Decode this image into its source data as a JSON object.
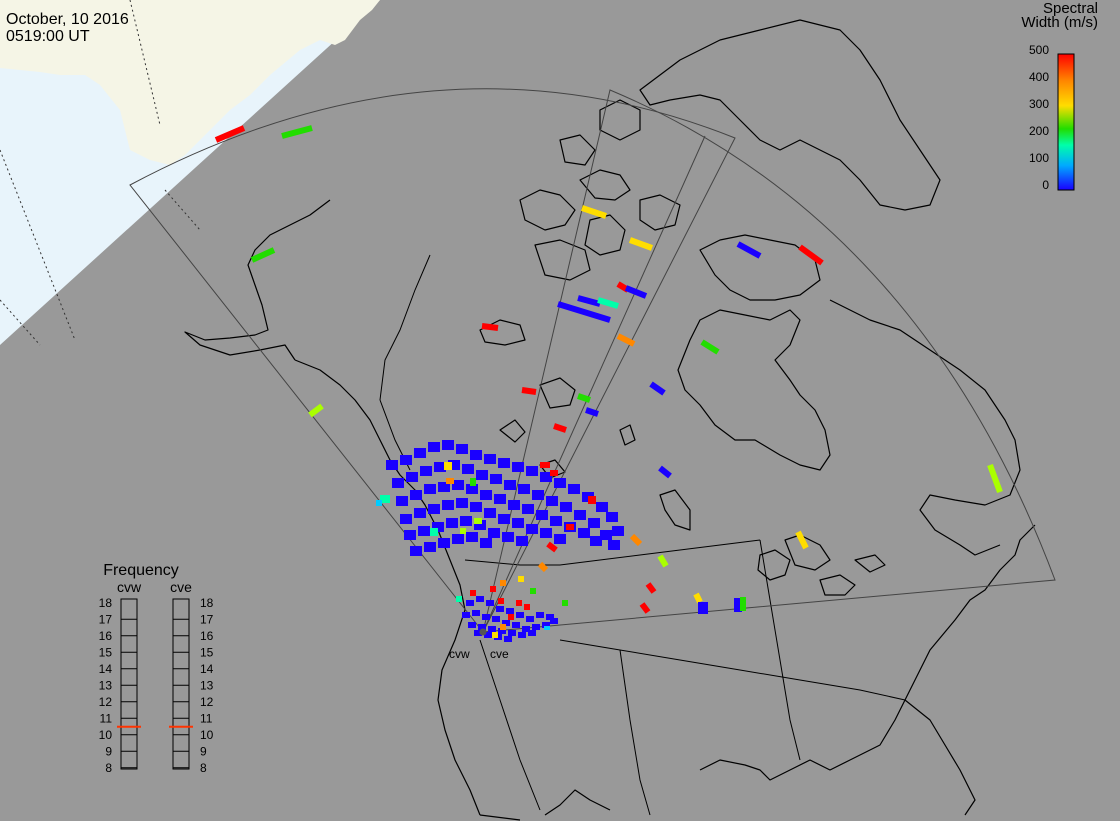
{
  "header": {
    "date": "October, 10 2016",
    "time": "0519:00 UT"
  },
  "colorbar": {
    "title_line1": "Spectral",
    "title_line2": "Width (m/s)",
    "ticks": [
      "500",
      "400",
      "300",
      "200",
      "100",
      "0"
    ],
    "palette": [
      "#1a00ff",
      "#00aaff",
      "#00ffaa",
      "#22dd00",
      "#ffdd00",
      "#ff8800",
      "#ff0000"
    ]
  },
  "frequency_panel": {
    "title": "Frequency",
    "left_radar": "cvw",
    "right_radar": "cve",
    "scale": [
      "18",
      "17",
      "16",
      "15",
      "14",
      "13",
      "12",
      "11",
      "10",
      "9",
      "8"
    ],
    "cvw_frequency_mhz": 10.5,
    "cve_frequency_mhz": 10.5
  },
  "radars": {
    "west_label": "cvw",
    "east_label": "cve"
  },
  "colors": {
    "background": "#999999",
    "ocean": "#e8f4fb",
    "land_north": "#f5f5e6",
    "coastline": "#000000",
    "fov_outline": "#444444",
    "frequency_marker": "#ff3300"
  }
}
